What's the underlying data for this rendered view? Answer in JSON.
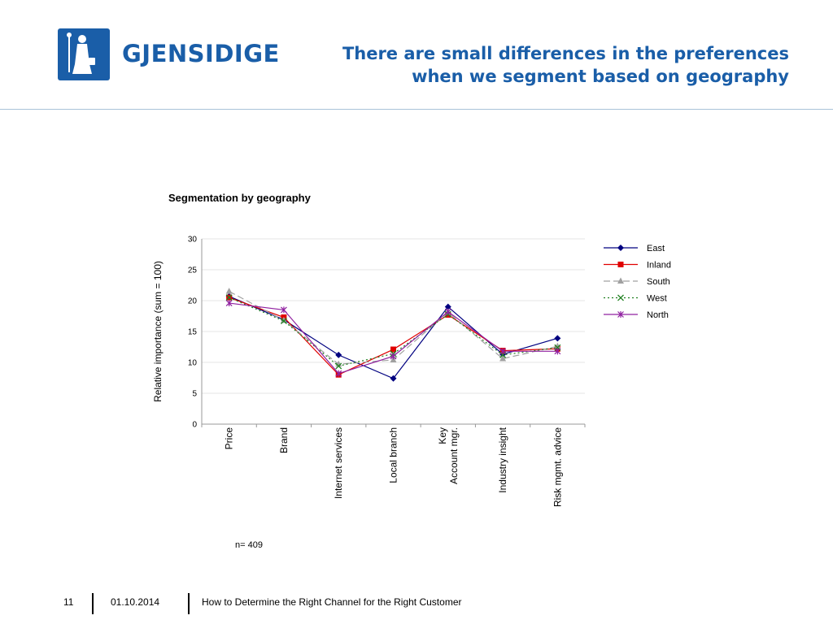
{
  "header": {
    "logo_text": "GJENSIDIGE",
    "title_line1": "There are small differences in the preferences",
    "title_line2": "when we segment based on geography"
  },
  "colors": {
    "brand": "#1a5ea8",
    "divider": "#a9c3d8"
  },
  "chart_data": {
    "type": "line",
    "title": "Segmentation by geography",
    "xlabel": "",
    "ylabel": "Relative importance (sum = 100)",
    "ylim": [
      0,
      30
    ],
    "yticks": [
      0,
      5,
      10,
      15,
      20,
      25,
      30
    ],
    "categories": [
      [
        "Price"
      ],
      [
        "Brand"
      ],
      [
        "Internet services"
      ],
      [
        "Local branch"
      ],
      [
        "Key",
        "Account mgr."
      ],
      [
        "Industry insight"
      ],
      [
        "Risk mgmt. advice"
      ]
    ],
    "legend_position": "right",
    "series": [
      {
        "name": "East",
        "color": "#000080",
        "dash": "",
        "marker": "diamond",
        "values": [
          20.7,
          16.9,
          11.2,
          7.4,
          19.0,
          11.3,
          13.9
        ]
      },
      {
        "name": "Inland",
        "color": "#e00000",
        "dash": "",
        "marker": "square",
        "values": [
          20.5,
          17.3,
          8.0,
          12.1,
          17.7,
          11.9,
          12.2
        ]
      },
      {
        "name": "South",
        "color": "#a0a0a0",
        "dash": "8,4",
        "marker": "triangle",
        "values": [
          21.5,
          16.8,
          9.7,
          10.4,
          18.1,
          10.6,
          12.6
        ]
      },
      {
        "name": "West",
        "color": "#208020",
        "dash": "2,3",
        "marker": "x",
        "values": [
          20.5,
          16.7,
          9.4,
          11.4,
          17.8,
          11.2,
          12.4
        ]
      },
      {
        "name": "North",
        "color": "#9020a0",
        "dash": "",
        "marker": "star",
        "values": [
          19.6,
          18.5,
          8.2,
          11.0,
          18.2,
          11.8,
          11.8
        ]
      }
    ],
    "note": "n= 409"
  },
  "footer": {
    "page": "11",
    "date": "01.10.2014",
    "text": "How to Determine the Right Channel for the Right Customer"
  }
}
